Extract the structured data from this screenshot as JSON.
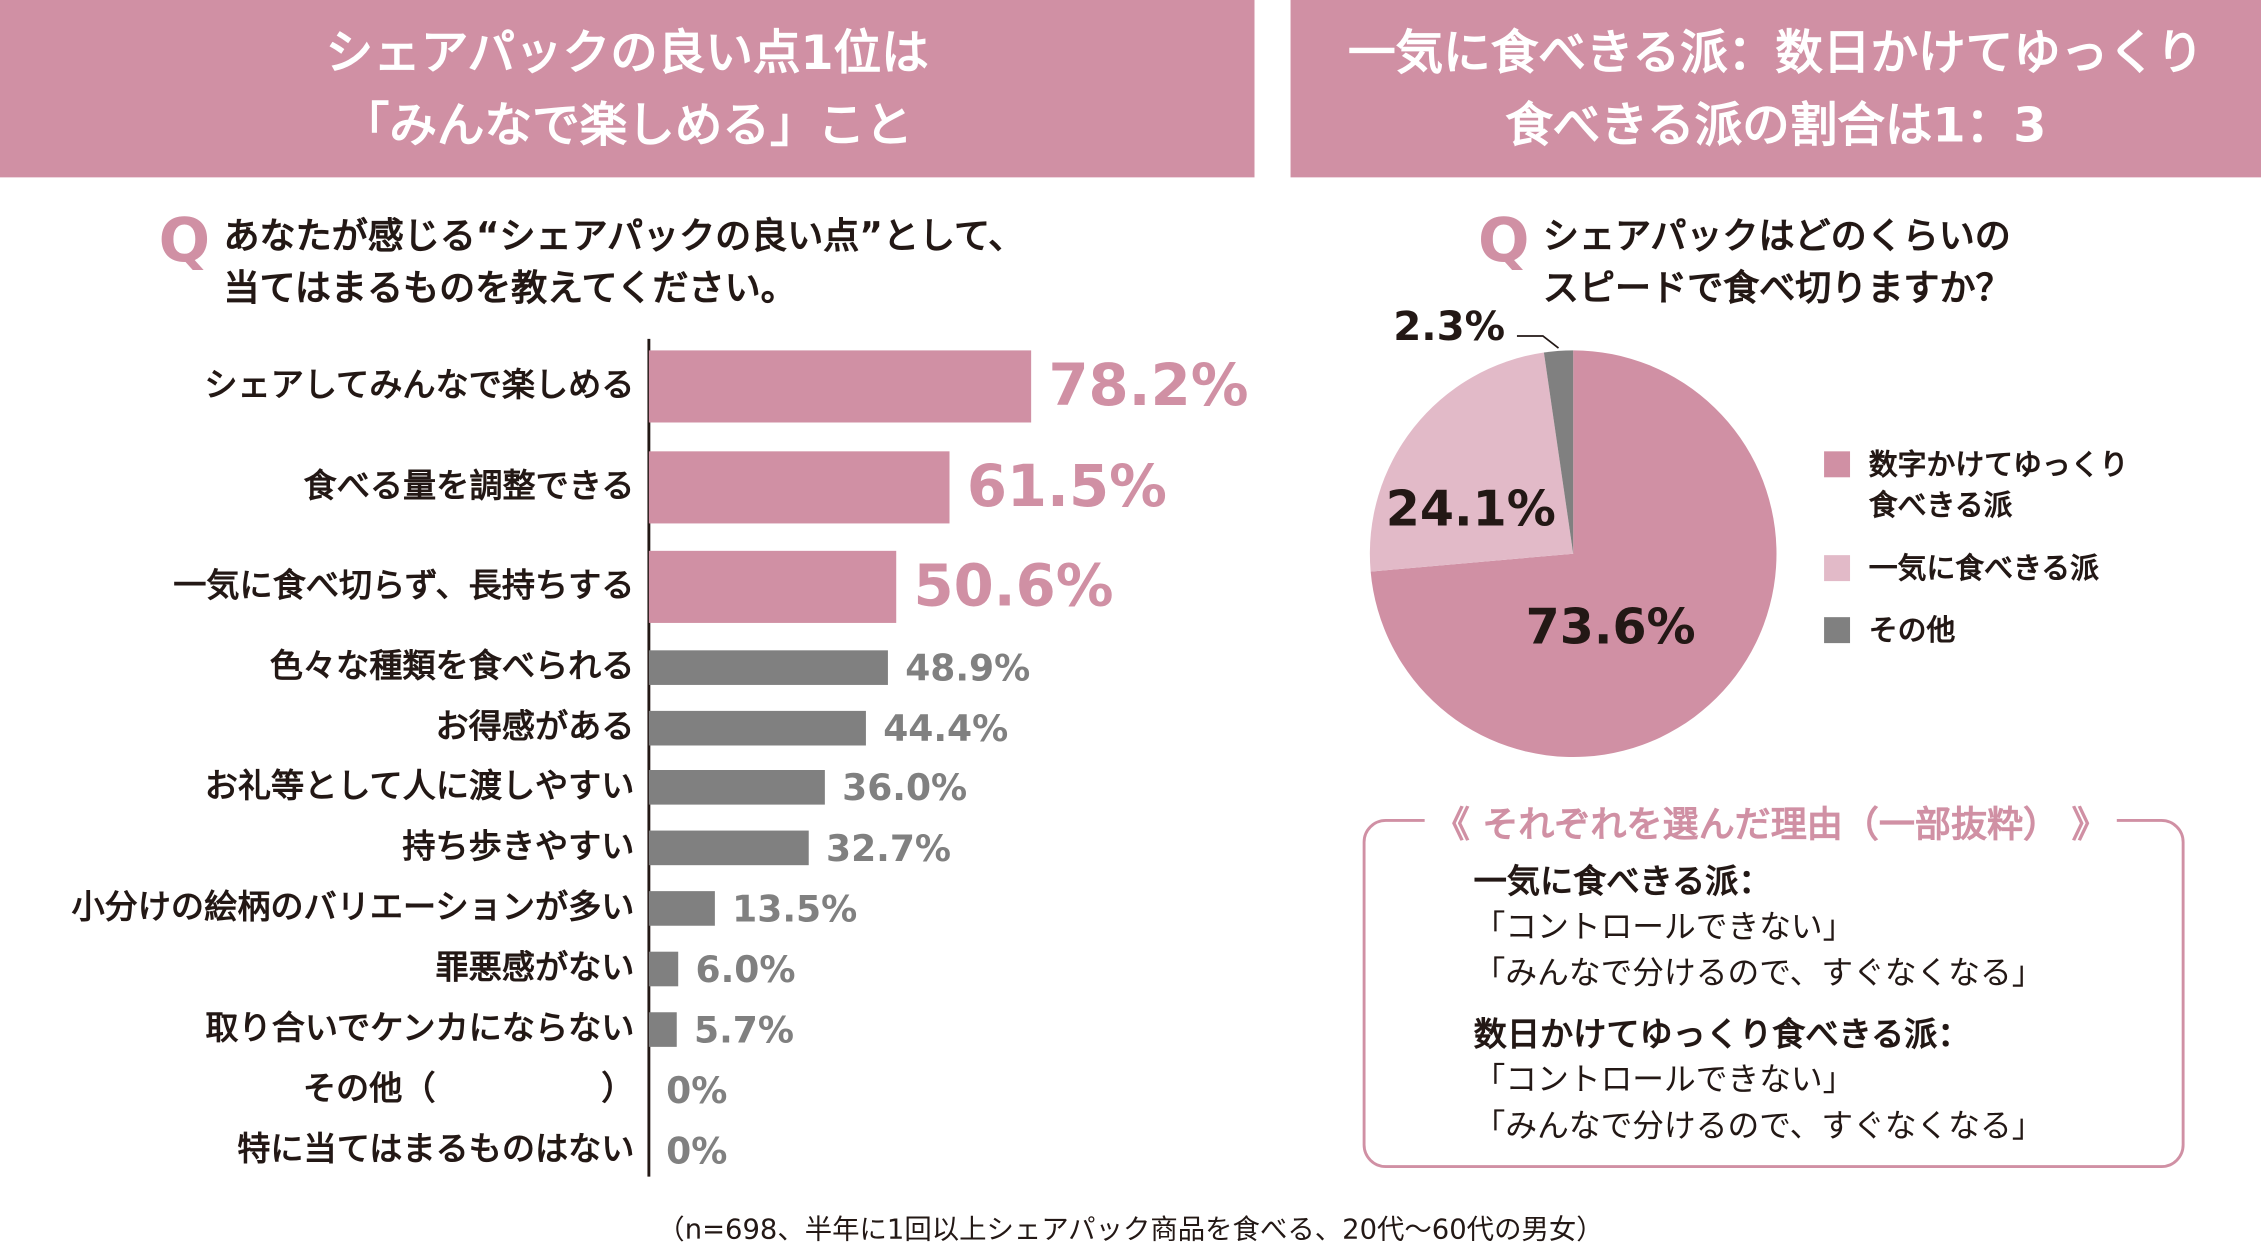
{
  "chart_data": [
    {
      "type": "bar",
      "orientation": "horizontal",
      "title": "シェアパックの良い点1位は\n「みんなで楽しめる」こと",
      "question_mark": "Q",
      "question": "あなたが感じる“シェアパックの良い点”として、\n当てはまるものを教えてください。",
      "categories": [
        "シェアしてみんなで楽しめる",
        "食べる量を調整できる",
        "一気に食べ切らず、長持ちする",
        "色々な種類を食べられる",
        "お得感がある",
        "お礼等として人に渡しやすい",
        "持ち歩きやすい",
        "小分けの絵柄のバリエーションが多い",
        "罪悪感がない",
        "取り合いでケンカにならない",
        "その他（　　　　　）",
        "特に当てはまるものはない"
      ],
      "values": [
        78.2,
        61.5,
        50.6,
        48.9,
        44.4,
        36.0,
        32.7,
        13.5,
        6.0,
        5.7,
        0,
        0
      ],
      "value_labels": [
        "78.2%",
        "61.5%",
        "50.6%",
        "48.9%",
        "44.4%",
        "36.0%",
        "32.7%",
        "13.5%",
        "6.0%",
        "5.7%",
        "0%",
        "0%"
      ],
      "colors": [
        "#d090a4",
        "#d090a4",
        "#d090a4",
        "#808080",
        "#808080",
        "#808080",
        "#808080",
        "#808080",
        "#808080",
        "#808080",
        "#808080",
        "#808080"
      ],
      "xlim": [
        0,
        100
      ]
    },
    {
      "type": "pie",
      "title": "一気に食べきる派：数日かけてゆっくり\n食べきる派の割合は1：3",
      "question_mark": "Q",
      "question": "シェアパックはどのくらいの\nスピードで食べ切りますか？",
      "categories": [
        "数字かけてゆっくり食べきる派",
        "一気に食べきる派",
        "その他"
      ],
      "values": [
        73.6,
        24.1,
        2.3
      ],
      "value_labels": [
        "73.6%",
        "24.1%",
        "2.3%"
      ],
      "colors": [
        "#d090a4",
        "#e2bac8",
        "#808080"
      ],
      "legend": "right"
    }
  ],
  "reasons": {
    "title": "それぞれを選んだ理由（一部抜粋）",
    "groups": [
      {
        "heading": "一気に食べきる派：",
        "items": [
          "「コントロールできない」",
          "「みんなで分けるので、すぐなくなる」"
        ]
      },
      {
        "heading": "数日かけてゆっくり食べきる派：",
        "items": [
          "「コントロールできない」",
          "「みんなで分けるので、すぐなくなる」"
        ]
      }
    ]
  },
  "footnote": "（n=698、半年に1回以上シェアパック商品を食べる、20代～60代の男女）"
}
